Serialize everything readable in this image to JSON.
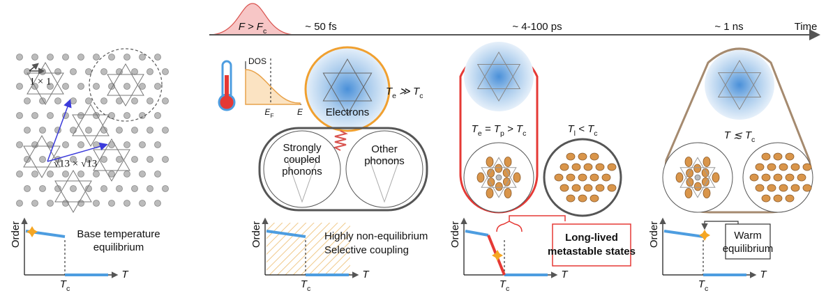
{
  "timeline": {
    "pulse_label": [
      "F > F",
      "c"
    ],
    "times": [
      "~ 50 fs",
      "~ 4-100 ps",
      "~ 1 ns"
    ],
    "axis_label": "Time"
  },
  "lattice": {
    "cell_label": "1 × 1",
    "supercell_label": "√13 × √13"
  },
  "panels": [
    {
      "caption": [
        "Base temperature",
        "equilibrium"
      ],
      "plot": {
        "y_label": "Order",
        "x_label": "T",
        "tc_label": [
          "T",
          "c"
        ]
      }
    },
    {
      "dos": {
        "y_label": "DOS",
        "fermi_label": [
          "E",
          "F"
        ],
        "x_label": "E"
      },
      "electrons": "Electrons",
      "electron_temp": [
        "T",
        "e",
        " ≫ T",
        "c"
      ],
      "phonons": [
        [
          "Strongly",
          "coupled",
          "phonons"
        ],
        [
          "Other",
          "phonons"
        ]
      ],
      "caption": "Highly non-equilibrium",
      "caption_highlight": "Selective coupling",
      "plot": {
        "y_label": "Order",
        "x_label": "T",
        "tc_label": [
          "T",
          "c"
        ]
      }
    },
    {
      "electron_phonon_temp": [
        "T",
        "e",
        " = T",
        "p",
        " > T",
        "c"
      ],
      "lattice_temp": [
        "T",
        "l",
        " < T",
        "c"
      ],
      "callout": [
        "Long-lived",
        "metastable states"
      ],
      "plot": {
        "y_label": "Order",
        "x_label": "T",
        "tc_label": [
          "T",
          "c"
        ]
      }
    },
    {
      "temp": [
        "T ≲ T",
        "c"
      ],
      "caption": [
        "Warm",
        "equilibrium"
      ],
      "plot": {
        "y_label": "Order",
        "x_label": "T",
        "tc_label": [
          "T",
          "c"
        ]
      }
    }
  ]
}
